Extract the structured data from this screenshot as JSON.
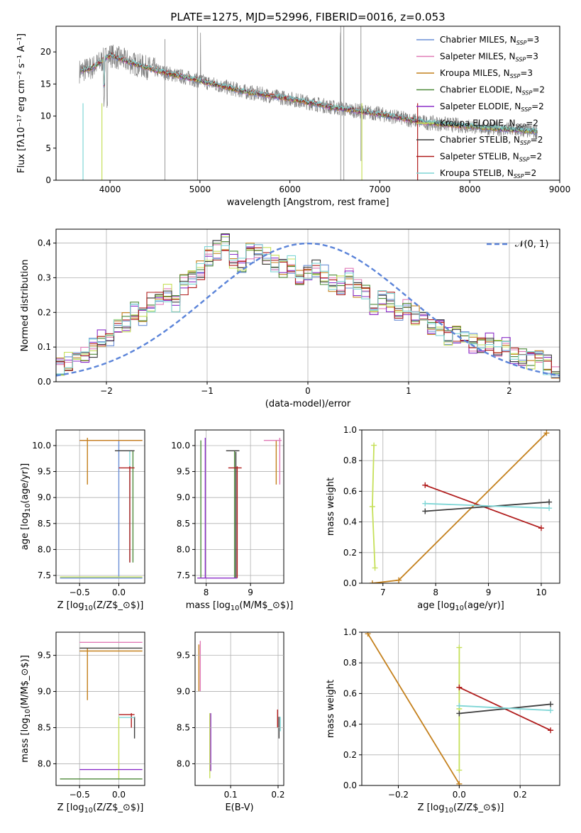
{
  "title": "PLATE=1275, MJD=52996, FIBERID=0016, z=0.053",
  "models": [
    {
      "name": "Chabrier MILES",
      "nssp": "3",
      "color": "#6b8fd6"
    },
    {
      "name": "Salpeter MILES",
      "nssp": "3",
      "color": "#e07ab6"
    },
    {
      "name": "Kroupa MILES",
      "nssp": "3",
      "color": "#c4801c"
    },
    {
      "name": "Chabrier ELODIE",
      "nssp": "2",
      "color": "#4e8a3a"
    },
    {
      "name": "Salpeter ELODIE",
      "nssp": "2",
      "color": "#8b2ec9"
    },
    {
      "name": "Kroupa ELODIE",
      "nssp": "2",
      "color": "#c6e05a"
    },
    {
      "name": "Chabrier STELIB",
      "nssp": "2",
      "color": "#3d3d3d"
    },
    {
      "name": "Salpeter STELIB",
      "nssp": "2",
      "color": "#b01c1c"
    },
    {
      "name": "Kroupa STELIB",
      "nssp": "2",
      "color": "#7fd6d6"
    }
  ],
  "chart_data": [
    {
      "id": "spectrum",
      "type": "line",
      "xlabel": "wavelength [Angstrom, rest frame]",
      "xlim": [
        3400,
        9000
      ],
      "ylim": [
        0,
        24
      ],
      "xticks": [
        4000,
        5000,
        6000,
        7000,
        8000,
        9000
      ],
      "yticks": [
        0,
        5,
        10,
        15,
        20
      ],
      "data_color": "#808080",
      "continuum": [
        [
          3660,
          17
        ],
        [
          3800,
          17.5
        ],
        [
          4000,
          19.5
        ],
        [
          4300,
          18
        ],
        [
          4600,
          16.8
        ],
        [
          5000,
          15.5
        ],
        [
          5500,
          13.8
        ],
        [
          6000,
          12.7
        ],
        [
          6500,
          11.3
        ],
        [
          7000,
          10.3
        ],
        [
          7500,
          9
        ],
        [
          8000,
          8.4
        ],
        [
          8500,
          7.8
        ],
        [
          8750,
          7.6
        ]
      ]
    },
    {
      "id": "residuals",
      "type": "line",
      "xlabel": "(data-model)/error",
      "ylabel": "Normed distribution",
      "xlim": [
        -2.5,
        2.5
      ],
      "ylim": [
        0,
        0.44
      ],
      "xticks": [
        -2,
        -1,
        0,
        1,
        2
      ],
      "yticks": [
        0,
        0.1,
        0.2,
        0.3,
        0.4
      ],
      "normal_label": "𝒩(0, 1)",
      "normal_color": "#5b84d9",
      "profile": [
        0.04,
        0.06,
        0.07,
        0.08,
        0.1,
        0.12,
        0.13,
        0.15,
        0.17,
        0.2,
        0.19,
        0.23,
        0.25,
        0.26,
        0.22,
        0.28,
        0.3,
        0.32,
        0.36,
        0.38,
        0.4,
        0.35,
        0.34,
        0.37,
        0.38,
        0.36,
        0.34,
        0.33,
        0.34,
        0.3,
        0.32,
        0.33,
        0.31,
        0.29,
        0.28,
        0.3,
        0.27,
        0.25,
        0.22,
        0.24,
        0.23,
        0.2,
        0.21,
        0.19,
        0.18,
        0.16,
        0.15,
        0.13,
        0.14,
        0.12,
        0.11,
        0.1,
        0.12,
        0.09,
        0.1,
        0.08,
        0.07,
        0.06,
        0.06,
        0.05,
        0.04
      ]
    },
    {
      "id": "age_vs_z",
      "type": "scatter",
      "xlabel": "Z [log$_{10}$(Z/Z$_\\odot$)]",
      "ylabel": "age  [log$_{10}$(age/yr)]",
      "xlim": [
        -0.8,
        0.33
      ],
      "ylim": [
        7.35,
        10.3
      ],
      "xticks": [
        -0.5,
        0.0,
        0.5
      ],
      "yticks": [
        7.5,
        8.0,
        8.5,
        9.0,
        9.5,
        10.0
      ],
      "vlines": [
        [
          -0.4,
          9.25,
          10.15,
          "#c4801c"
        ],
        [
          0.0,
          7.45,
          10.1,
          "#6b8fd6"
        ],
        [
          0.14,
          7.75,
          9.9,
          "#7fd6d6"
        ],
        [
          0.18,
          7.75,
          9.9,
          "#4e8a3a"
        ],
        [
          0.14,
          7.75,
          9.6,
          "#b01c1c"
        ]
      ],
      "hlines": [
        [
          -0.5,
          0.3,
          10.1,
          "#e07ab6"
        ],
        [
          -0.5,
          0.3,
          10.1,
          "#c4801c"
        ],
        [
          -0.05,
          0.2,
          9.9,
          "#3d3d3d"
        ],
        [
          -0.75,
          0.3,
          7.45,
          "#6b8fd6"
        ],
        [
          -0.75,
          0.3,
          7.47,
          "#c6e05a"
        ],
        [
          0.0,
          0.2,
          9.57,
          "#b01c1c"
        ]
      ]
    },
    {
      "id": "age_vs_mass",
      "type": "scatter",
      "xlabel": "mass [log$_{10}$(M/M$_\\odot$)]",
      "xlim": [
        7.75,
        9.75
      ],
      "ylim": [
        7.35,
        10.3
      ],
      "xticks": [
        8,
        9
      ],
      "yticks": [
        7.5,
        8.0,
        8.5,
        9.0,
        9.5,
        10.0
      ],
      "vlines": [
        [
          7.88,
          7.45,
          10.1,
          "#4e8a3a"
        ],
        [
          7.98,
          7.45,
          10.15,
          "#8b2ec9"
        ],
        [
          8.64,
          7.45,
          9.9,
          "#4e8a3a"
        ],
        [
          8.67,
          7.45,
          9.88,
          "#3d3d3d"
        ],
        [
          8.7,
          7.45,
          9.6,
          "#b01c1c"
        ],
        [
          9.58,
          9.25,
          10.1,
          "#c4801c"
        ],
        [
          9.66,
          9.25,
          10.15,
          "#e07ab6"
        ]
      ],
      "hlines": [
        [
          8.45,
          8.75,
          9.9,
          "#3d3d3d"
        ],
        [
          8.5,
          8.8,
          9.57,
          "#b01c1c"
        ],
        [
          7.8,
          8.7,
          7.45,
          "#8b2ec9"
        ],
        [
          9.3,
          9.7,
          10.1,
          "#e07ab6"
        ]
      ]
    },
    {
      "id": "massweight_vs_age",
      "type": "line",
      "xlabel": "age  [log$_{10}$(age/yr)]",
      "ylabel": "mass weight",
      "xlim": [
        6.6,
        10.35
      ],
      "ylim": [
        0,
        1
      ],
      "xticks": [
        7,
        8,
        9,
        10
      ],
      "yticks": [
        0,
        0.2,
        0.4,
        0.6,
        0.8,
        1.0
      ],
      "series": [
        {
          "color": "#c4801c",
          "x": [
            6.8,
            7.3,
            10.1
          ],
          "y": [
            0.0,
            0.02,
            0.98
          ]
        },
        {
          "color": "#c6e05a",
          "x": [
            6.83,
            6.8,
            6.85
          ],
          "y": [
            0.9,
            0.5,
            0.1
          ]
        },
        {
          "color": "#b01c1c",
          "x": [
            7.8,
            10.0
          ],
          "y": [
            0.64,
            0.36
          ]
        },
        {
          "color": "#3d3d3d",
          "x": [
            7.8,
            10.15
          ],
          "y": [
            0.47,
            0.53
          ]
        },
        {
          "color": "#7fd6d6",
          "x": [
            7.8,
            10.15
          ],
          "y": [
            0.52,
            0.49
          ]
        }
      ]
    },
    {
      "id": "mass_vs_z",
      "type": "scatter",
      "xlabel": "Z [log$_{10}$(Z/Z$_\\odot$)]",
      "ylabel": "mass [log$_{10}$(M/M$_\\odot$)]",
      "xlim": [
        -0.8,
        0.33
      ],
      "ylim": [
        7.7,
        9.82
      ],
      "xticks": [
        -0.5,
        0.0,
        0.5
      ],
      "yticks": [
        8.0,
        8.5,
        9.0,
        9.5
      ],
      "vlines": [
        [
          -0.4,
          8.88,
          9.6,
          "#c4801c"
        ],
        [
          0.0,
          7.8,
          8.65,
          "#c6e05a"
        ],
        [
          0.16,
          8.5,
          8.7,
          "#b01c1c"
        ],
        [
          0.2,
          8.35,
          8.65,
          "#3d3d3d"
        ]
      ],
      "hlines": [
        [
          -0.5,
          0.3,
          9.68,
          "#e07ab6"
        ],
        [
          -0.5,
          0.3,
          9.6,
          "#3d3d3d"
        ],
        [
          -0.5,
          0.3,
          9.56,
          "#c4801c"
        ],
        [
          0.0,
          0.2,
          8.68,
          "#b01c1c"
        ],
        [
          0.0,
          0.2,
          8.64,
          "#7fd6d6"
        ],
        [
          -0.5,
          0.3,
          7.92,
          "#8b2ec9"
        ],
        [
          -0.75,
          0.3,
          7.79,
          "#4e8a3a"
        ]
      ]
    },
    {
      "id": "mass_vs_ebv",
      "type": "scatter",
      "xlabel": "E(B-V)",
      "xlim": [
        0.025,
        0.212
      ],
      "ylim": [
        7.7,
        9.82
      ],
      "xticks": [
        0.1,
        0.2
      ],
      "vlines": [
        [
          0.033,
          9.0,
          9.65,
          "#c4801c"
        ],
        [
          0.036,
          9.0,
          9.7,
          "#e07ab6"
        ],
        [
          0.056,
          7.8,
          8.7,
          "#c6e05a"
        ],
        [
          0.058,
          7.9,
          8.7,
          "#8b2ec9"
        ],
        [
          0.199,
          8.5,
          8.75,
          "#b01c1c"
        ],
        [
          0.202,
          8.35,
          8.65,
          "#3d3d3d"
        ],
        [
          0.205,
          8.45,
          8.65,
          "#7fd6d6"
        ]
      ],
      "hlines": []
    },
    {
      "id": "massweight_vs_z",
      "type": "line",
      "xlabel": "Z [log$_{10}$(Z/Z$_\\odot$)]",
      "ylabel": "mass weight",
      "xlim": [
        -0.32,
        0.33
      ],
      "ylim": [
        0,
        1
      ],
      "xticks": [
        -0.2,
        0.0,
        0.2
      ],
      "yticks": [
        0,
        0.2,
        0.4,
        0.6,
        0.8,
        1.0
      ],
      "series": [
        {
          "color": "#c4801c",
          "x": [
            -0.3,
            0.0
          ],
          "y": [
            0.99,
            0.01
          ]
        },
        {
          "color": "#c6e05a",
          "x": [
            0.0,
            0.0,
            0.0
          ],
          "y": [
            0.9,
            0.5,
            0.1
          ]
        },
        {
          "color": "#b01c1c",
          "x": [
            0.0,
            0.3
          ],
          "y": [
            0.64,
            0.36
          ]
        },
        {
          "color": "#3d3d3d",
          "x": [
            0.0,
            0.3
          ],
          "y": [
            0.47,
            0.53
          ]
        },
        {
          "color": "#7fd6d6",
          "x": [
            0.0,
            0.3
          ],
          "y": [
            0.52,
            0.49
          ]
        }
      ]
    }
  ]
}
